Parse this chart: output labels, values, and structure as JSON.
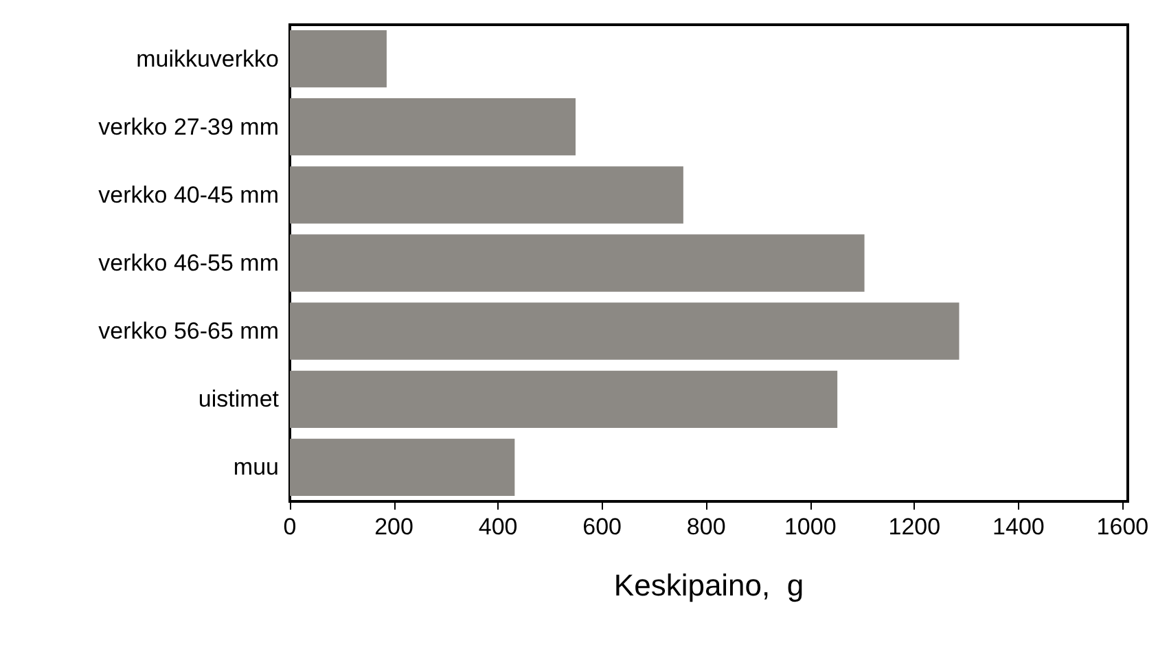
{
  "chart_data": {
    "type": "bar",
    "orientation": "horizontal",
    "xlabel": "Keskipaino,  g",
    "categories": [
      "muikkuverkko",
      "verkko 27-39 mm",
      "verkko 40-45 mm",
      "verkko 46-55 mm",
      "verkko 56-65 mm",
      "uistimet",
      "muu"
    ],
    "values": [
      186,
      549,
      756,
      1104,
      1286,
      1052,
      432
    ],
    "color": "#8c8984",
    "xlim": [
      0,
      1610
    ],
    "xticks": [
      0,
      200,
      400,
      600,
      800,
      1000,
      1200,
      1400,
      1600
    ],
    "grid": false
  }
}
